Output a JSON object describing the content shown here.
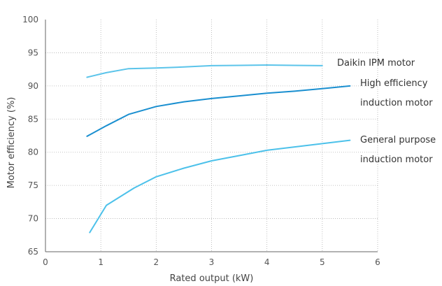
{
  "chart_data": {
    "type": "line",
    "xlabel": "Rated output (kW)",
    "ylabel": "Motor efficiency (%)",
    "xlim": [
      0,
      6
    ],
    "ylim": [
      65,
      100
    ],
    "x_ticks": [
      "0",
      "1",
      "2",
      "3",
      "4",
      "5",
      "6"
    ],
    "y_ticks": [
      "65",
      "70",
      "75",
      "80",
      "85",
      "90",
      "95",
      "100"
    ],
    "grid": "dotted",
    "series": [
      {
        "name": "Daikin IPM motor",
        "label_lines": [
          "Daikin IPM motor"
        ],
        "color": "#5bc4ea",
        "x": [
          0.75,
          1.1,
          1.5,
          2.0,
          2.5,
          3.0,
          3.5,
          4.0,
          4.5,
          5.0
        ],
        "y": [
          91.3,
          92.0,
          92.6,
          92.7,
          92.85,
          93.05,
          93.1,
          93.15,
          93.1,
          93.05
        ]
      },
      {
        "name": "High efficiency induction motor",
        "label_lines": [
          "High efficiency",
          "induction motor"
        ],
        "color": "#1a8fd0",
        "x": [
          0.75,
          1.1,
          1.5,
          2.0,
          2.5,
          3.0,
          3.5,
          4.0,
          4.5,
          5.0,
          5.5
        ],
        "y": [
          82.4,
          84.0,
          85.7,
          86.9,
          87.6,
          88.1,
          88.5,
          88.9,
          89.2,
          89.6,
          90.0
        ]
      },
      {
        "name": "General purpose induction motor",
        "label_lines": [
          "General purpose",
          "induction motor"
        ],
        "color": "#4cc1ea",
        "x": [
          0.8,
          1.1,
          1.6,
          2.0,
          2.5,
          3.0,
          3.5,
          4.0,
          4.5,
          5.0,
          5.5
        ],
        "y": [
          67.9,
          72.0,
          74.6,
          76.3,
          77.6,
          78.7,
          79.5,
          80.3,
          80.8,
          81.3,
          81.8
        ]
      }
    ]
  }
}
